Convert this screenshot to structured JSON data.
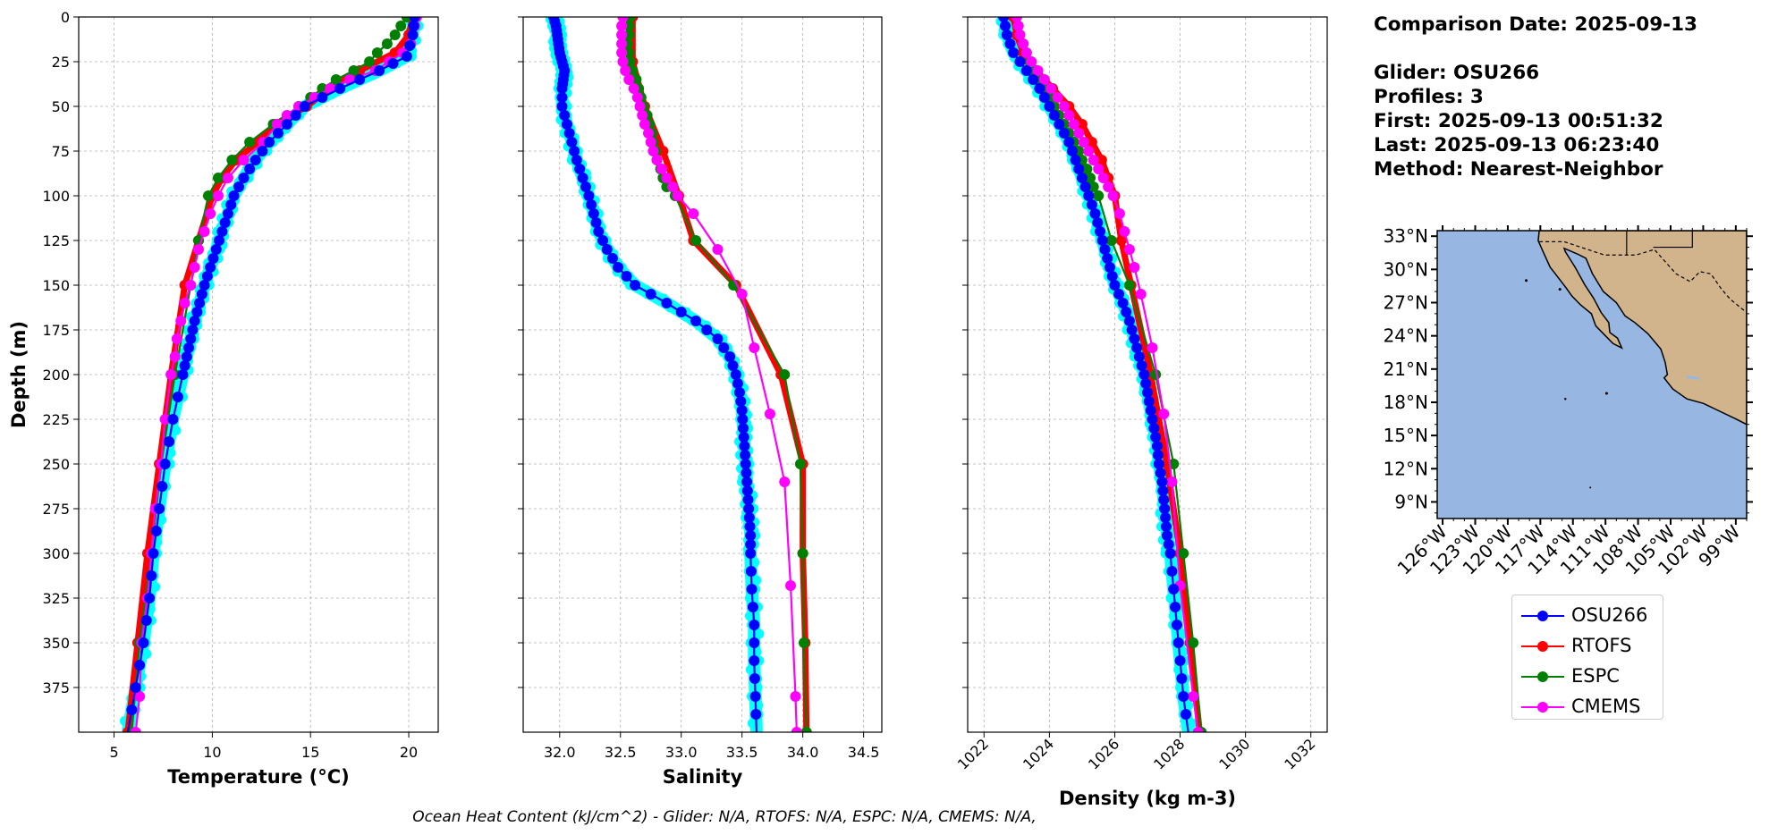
{
  "info": {
    "comparison": "Comparison Date: 2025-09-13",
    "glider": "Glider: OSU266",
    "profiles": "Profiles: 3",
    "first": "First: 2025-09-13 00:51:32",
    "last": "Last: 2025-09-13 06:23:40",
    "method": "Method: Nearest-Neighbor"
  },
  "footer": "Ocean Heat Content (kJ/cm^2) - Glider: N/A,  RTOFS: N/A,  ESPC: N/A,  CMEMS: N/A,",
  "legend": [
    {
      "name": "OSU266",
      "color": "#0000ff"
    },
    {
      "name": "RTOFS",
      "color": "#ff0000"
    },
    {
      "name": "ESPC",
      "color": "#008000"
    },
    {
      "name": "CMEMS",
      "color": "#ff00ff"
    }
  ],
  "colors": {
    "glider": "#0000ff",
    "glider_band": "#00ffff",
    "rtofs": "#ff0000",
    "espc": "#008000",
    "cmems": "#ff00ff",
    "ocean": "#97b6e1",
    "land": "#d2b48c"
  },
  "map": {
    "lat_labels": [
      "33°N",
      "30°N",
      "27°N",
      "24°N",
      "21°N",
      "18°N",
      "15°N",
      "12°N",
      "9°N"
    ],
    "lat_values": [
      33,
      30,
      27,
      24,
      21,
      18,
      15,
      12,
      9
    ],
    "lon_labels": [
      "126°W",
      "123°W",
      "120°W",
      "117°W",
      "114°W",
      "111°W",
      "108°W",
      "105°W",
      "102°W",
      "99°W"
    ],
    "lon_values": [
      -126,
      -123,
      -120,
      -117,
      -114,
      -111,
      -108,
      -105,
      -102,
      -99
    ],
    "lat_range": [
      7.5,
      33.5
    ],
    "lon_range": [
      -126.5,
      -98
    ]
  },
  "chart_data": [
    {
      "type": "line",
      "xlabel": "Temperature (°C)",
      "ylabel": "Depth (m)",
      "xlim": [
        3.2,
        21.5
      ],
      "ylim": [
        400,
        0
      ],
      "xticks": [
        "5",
        "10",
        "15",
        "20"
      ],
      "xtick_values": [
        5,
        10,
        15,
        20
      ],
      "yticks": [
        "0",
        "25",
        "50",
        "75",
        "100",
        "125",
        "150",
        "175",
        "200",
        "225",
        "250",
        "275",
        "300",
        "325",
        "350",
        "375"
      ],
      "ytick_values": [
        0,
        25,
        50,
        75,
        100,
        125,
        150,
        175,
        200,
        225,
        250,
        275,
        300,
        325,
        350,
        375
      ],
      "grid": true,
      "series": [
        {
          "name": "OSU266",
          "depth": [
            0,
            10,
            22,
            30,
            40,
            50,
            60,
            70,
            80,
            90,
            100,
            110,
            120,
            130,
            140,
            150,
            160,
            170,
            180,
            190,
            200,
            225,
            250,
            275,
            300,
            325,
            350,
            375,
            400
          ],
          "values": [
            20.3,
            20.2,
            19.9,
            18.5,
            16.5,
            14.7,
            13.8,
            12.9,
            12.2,
            11.6,
            11.1,
            10.8,
            10.5,
            10.2,
            9.9,
            9.6,
            9.35,
            9.1,
            8.9,
            8.7,
            8.5,
            8.0,
            7.6,
            7.3,
            7.0,
            6.8,
            6.5,
            6.1,
            5.7
          ]
        },
        {
          "name": "RTOFS",
          "depth": [
            0,
            10,
            20,
            30,
            40,
            50,
            60,
            70,
            80,
            90,
            100,
            125,
            150,
            200,
            250,
            300,
            350,
            400
          ],
          "values": [
            20.2,
            20.0,
            19.3,
            17.5,
            16.0,
            14.8,
            13.2,
            12.3,
            11.2,
            10.5,
            10.0,
            9.3,
            8.6,
            7.9,
            7.3,
            6.7,
            6.2,
            5.7
          ]
        },
        {
          "name": "ESPC",
          "depth": [
            0,
            5,
            10,
            15,
            20,
            25,
            30,
            35,
            40,
            45,
            50,
            60,
            70,
            80,
            90,
            100,
            125,
            150,
            200,
            250,
            300,
            350,
            400
          ],
          "values": [
            19.9,
            19.6,
            19.3,
            18.9,
            18.4,
            18.0,
            17.2,
            16.3,
            15.6,
            15.0,
            14.4,
            13.1,
            11.9,
            11.0,
            10.3,
            9.8,
            9.3,
            8.9,
            8.1,
            7.4,
            6.9,
            6.3,
            5.9
          ]
        },
        {
          "name": "CMEMS",
          "depth": [
            0,
            5,
            10,
            15,
            20,
            25,
            30,
            35,
            40,
            45,
            50,
            55,
            60,
            70,
            80,
            90,
            100,
            110,
            120,
            130,
            140,
            150,
            160,
            170,
            180,
            190,
            200,
            225,
            250,
            275,
            300,
            325,
            350,
            380,
            400
          ],
          "values": [
            20.4,
            20.3,
            20.2,
            20.1,
            19.7,
            19.0,
            18.3,
            17.0,
            16.0,
            15.2,
            14.4,
            13.8,
            13.3,
            12.6,
            11.6,
            10.8,
            10.3,
            9.9,
            9.6,
            9.3,
            9.1,
            8.9,
            8.6,
            8.4,
            8.2,
            8.1,
            7.9,
            7.6,
            7.4,
            7.1,
            6.9,
            6.7,
            6.4,
            6.3,
            6.1
          ]
        }
      ]
    },
    {
      "type": "line",
      "xlabel": "Salinity",
      "xlim": [
        31.7,
        34.65
      ],
      "ylim": [
        400,
        0
      ],
      "xticks": [
        "32.0",
        "32.5",
        "33.0",
        "33.5",
        "34.0",
        "34.5"
      ],
      "xtick_values": [
        32.0,
        32.5,
        33.0,
        33.5,
        34.0,
        34.5
      ],
      "grid": true,
      "series": [
        {
          "name": "OSU266",
          "depth": [
            0,
            5,
            10,
            15,
            20,
            25,
            30,
            35,
            40,
            50,
            60,
            70,
            80,
            90,
            100,
            110,
            120,
            130,
            140,
            150,
            160,
            170,
            180,
            190,
            200,
            210,
            220,
            230,
            240,
            250,
            260,
            270,
            280,
            290,
            300,
            320,
            340,
            360,
            380,
            400
          ],
          "values": [
            31.95,
            31.97,
            31.98,
            31.99,
            32.0,
            32.02,
            32.04,
            32.03,
            32.02,
            32.02,
            32.06,
            32.1,
            32.14,
            32.19,
            32.24,
            32.28,
            32.32,
            32.39,
            32.48,
            32.62,
            32.88,
            33.12,
            33.3,
            33.4,
            33.45,
            33.48,
            33.5,
            33.51,
            33.52,
            33.53,
            33.54,
            33.55,
            33.56,
            33.57,
            33.57,
            33.58,
            33.6,
            33.6,
            33.61,
            33.62
          ]
        },
        {
          "name": "RTOFS",
          "depth": [
            0,
            25,
            50,
            75,
            100,
            125,
            150,
            200,
            250,
            300,
            350,
            400
          ],
          "values": [
            32.6,
            32.6,
            32.7,
            32.85,
            32.98,
            33.1,
            33.45,
            33.82,
            34.0,
            34.0,
            34.02,
            34.03
          ]
        },
        {
          "name": "ESPC",
          "depth": [
            0,
            5,
            10,
            15,
            20,
            25,
            30,
            35,
            40,
            45,
            50,
            55,
            60,
            65,
            70,
            75,
            80,
            85,
            90,
            95,
            100,
            125,
            150,
            200,
            250,
            300,
            350,
            400
          ],
          "values": [
            32.58,
            32.57,
            32.57,
            32.56,
            32.57,
            32.58,
            32.6,
            32.63,
            32.65,
            32.67,
            32.69,
            32.72,
            32.74,
            32.76,
            32.77,
            32.79,
            32.8,
            32.83,
            32.85,
            32.88,
            32.95,
            33.12,
            33.43,
            33.85,
            33.98,
            34.0,
            34.01,
            34.03
          ]
        },
        {
          "name": "CMEMS",
          "depth": [
            0,
            5,
            10,
            15,
            20,
            25,
            30,
            35,
            40,
            45,
            50,
            55,
            60,
            65,
            70,
            75,
            80,
            85,
            90,
            95,
            100,
            110,
            130,
            155,
            185,
            222,
            260,
            318,
            380,
            400
          ],
          "values": [
            32.52,
            32.51,
            32.51,
            32.51,
            32.51,
            32.52,
            32.54,
            32.57,
            32.61,
            32.64,
            32.66,
            32.68,
            32.7,
            32.73,
            32.75,
            32.77,
            32.8,
            32.84,
            32.88,
            32.93,
            32.97,
            33.1,
            33.3,
            33.5,
            33.6,
            33.73,
            33.85,
            33.9,
            33.94,
            33.95
          ]
        }
      ]
    },
    {
      "type": "line",
      "xlabel": "Density (kg m-3)",
      "xlim": [
        1021.5,
        1032.5
      ],
      "ylim": [
        400,
        0
      ],
      "xticks": [
        "1022",
        "1024",
        "1026",
        "1028",
        "1030",
        "1032"
      ],
      "xtick_values": [
        1022,
        1024,
        1026,
        1028,
        1030,
        1032
      ],
      "grid": true,
      "series": [
        {
          "name": "OSU266",
          "depth": [
            0,
            10,
            20,
            30,
            40,
            50,
            60,
            70,
            80,
            90,
            100,
            110,
            120,
            130,
            140,
            150,
            160,
            170,
            180,
            190,
            200,
            210,
            220,
            230,
            240,
            250,
            260,
            270,
            280,
            290,
            300,
            320,
            340,
            360,
            380,
            400
          ],
          "values": [
            1022.6,
            1022.7,
            1022.9,
            1023.3,
            1023.7,
            1024.0,
            1024.3,
            1024.6,
            1024.8,
            1025.0,
            1025.2,
            1025.4,
            1025.55,
            1025.7,
            1025.85,
            1026.0,
            1026.25,
            1026.45,
            1026.6,
            1026.75,
            1026.9,
            1027.0,
            1027.1,
            1027.2,
            1027.3,
            1027.35,
            1027.45,
            1027.5,
            1027.55,
            1027.6,
            1027.7,
            1027.8,
            1027.9,
            1028.0,
            1028.1,
            1028.25
          ]
        },
        {
          "name": "RTOFS",
          "depth": [
            0,
            10,
            20,
            30,
            40,
            50,
            60,
            70,
            80,
            90,
            100,
            125,
            150,
            200,
            250,
            300,
            350,
            400
          ],
          "values": [
            1022.9,
            1023.0,
            1023.2,
            1023.6,
            1024.1,
            1024.6,
            1025.0,
            1025.3,
            1025.6,
            1025.8,
            1026.0,
            1026.2,
            1026.5,
            1027.1,
            1027.6,
            1028.0,
            1028.3,
            1028.6
          ]
        },
        {
          "name": "ESPC",
          "depth": [
            0,
            5,
            10,
            15,
            20,
            25,
            30,
            35,
            40,
            45,
            50,
            55,
            60,
            65,
            70,
            75,
            80,
            85,
            90,
            95,
            100,
            125,
            150,
            200,
            250,
            300,
            350,
            400
          ],
          "values": [
            1023.0,
            1023.05,
            1023.1,
            1023.2,
            1023.3,
            1023.4,
            1023.55,
            1023.7,
            1023.85,
            1024.0,
            1024.15,
            1024.3,
            1024.45,
            1024.6,
            1024.75,
            1024.9,
            1025.0,
            1025.15,
            1025.25,
            1025.35,
            1025.5,
            1025.9,
            1026.45,
            1027.25,
            1027.8,
            1028.1,
            1028.4,
            1028.65
          ]
        },
        {
          "name": "CMEMS",
          "depth": [
            0,
            5,
            10,
            15,
            20,
            25,
            30,
            35,
            40,
            45,
            50,
            55,
            60,
            65,
            70,
            75,
            80,
            85,
            90,
            95,
            100,
            110,
            120,
            130,
            140,
            155,
            185,
            222,
            260,
            318,
            380,
            400
          ],
          "values": [
            1023.0,
            1023.05,
            1023.1,
            1023.2,
            1023.3,
            1023.45,
            1023.65,
            1023.85,
            1024.05,
            1024.25,
            1024.45,
            1024.6,
            1024.75,
            1024.9,
            1025.05,
            1025.2,
            1025.35,
            1025.5,
            1025.65,
            1025.8,
            1025.95,
            1026.15,
            1026.3,
            1026.45,
            1026.6,
            1026.8,
            1027.15,
            1027.5,
            1027.75,
            1028.0,
            1028.4,
            1028.55
          ]
        }
      ]
    }
  ]
}
